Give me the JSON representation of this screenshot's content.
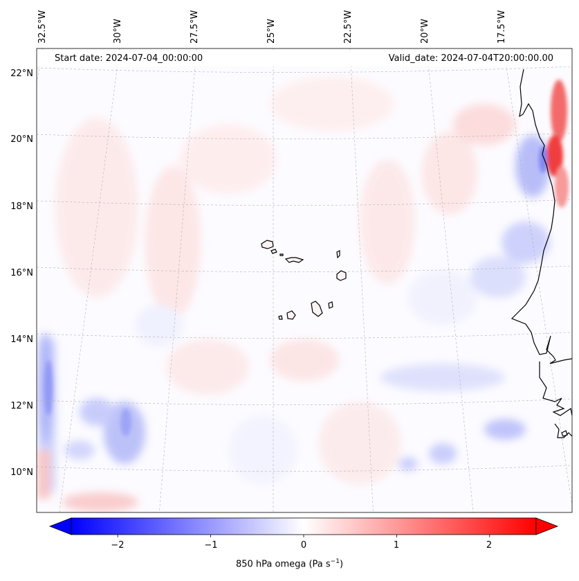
{
  "map": {
    "start_date": "Start date: 2024-07-04_00:00:00",
    "valid_date": "Valid_date: 2024-07-04T20:00:00.00",
    "lon_labels": [
      "32.5°W",
      "30°W",
      "27.5°W",
      "25°W",
      "22.5°W",
      "20°W",
      "17.5°W"
    ],
    "lat_labels": [
      "22°N",
      "20°N",
      "18°N",
      "16°N",
      "14°N",
      "12°N",
      "10°N"
    ],
    "lon_values": [
      -32.5,
      -30,
      -27.5,
      -25,
      -22.5,
      -20,
      -17.5
    ],
    "lat_values": [
      22,
      20,
      18,
      16,
      14,
      12,
      10
    ],
    "extent": {
      "lon_min": -33.4,
      "lon_max": -15.8,
      "lat_min": 8.8,
      "lat_max": 22.7
    },
    "land_color": "#ffffff",
    "coastline_color": "#000000"
  },
  "colorbar": {
    "label_text": "850 hPa omega (Pa s",
    "label_sup": "−1",
    "label_close": ")",
    "ticks": [
      "−2",
      "−1",
      "0",
      "1",
      "2"
    ],
    "tick_values": [
      -2,
      -1,
      0,
      1,
      2
    ],
    "range": [
      -2.5,
      2.5
    ],
    "colormap": "bwr",
    "low_color": "#0000ff",
    "mid_color": "#ffffff",
    "high_color": "#ff0000"
  }
}
